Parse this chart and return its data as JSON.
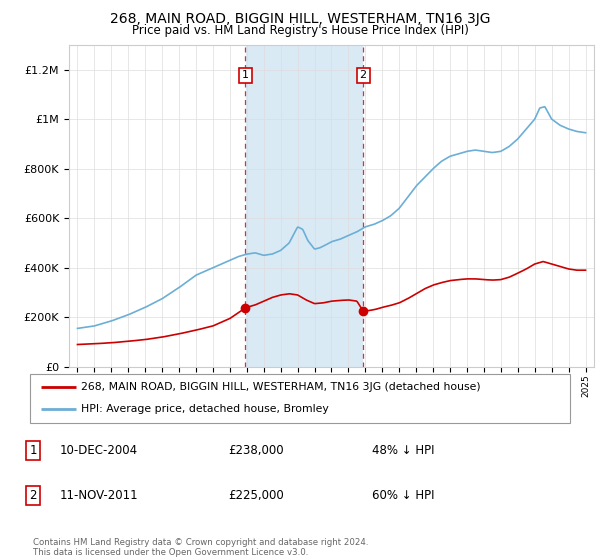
{
  "title": "268, MAIN ROAD, BIGGIN HILL, WESTERHAM, TN16 3JG",
  "subtitle": "Price paid vs. HM Land Registry's House Price Index (HPI)",
  "sale1_date": 2004.92,
  "sale1_price": 238000,
  "sale2_date": 2011.87,
  "sale2_price": 225000,
  "sale1_info": "10-DEC-2004",
  "sale1_amount": "£238,000",
  "sale1_pct": "48% ↓ HPI",
  "sale2_info": "11-NOV-2011",
  "sale2_amount": "£225,000",
  "sale2_pct": "60% ↓ HPI",
  "hpi_color": "#6baed6",
  "property_color": "#cc0000",
  "shade_color": "#daeaf5",
  "legend_property": "268, MAIN ROAD, BIGGIN HILL, WESTERHAM, TN16 3JG (detached house)",
  "legend_hpi": "HPI: Average price, detached house, Bromley",
  "copyright": "Contains HM Land Registry data © Crown copyright and database right 2024.\nThis data is licensed under the Open Government Licence v3.0.",
  "ylim": [
    0,
    1300000
  ],
  "yticks": [
    0,
    200000,
    400000,
    600000,
    800000,
    1000000,
    1200000
  ],
  "ytick_labels": [
    "£0",
    "£200K",
    "£400K",
    "£600K",
    "£800K",
    "£1M",
    "£1.2M"
  ],
  "bg_color": "#f8f8f8",
  "plot_bg": "#ffffff"
}
